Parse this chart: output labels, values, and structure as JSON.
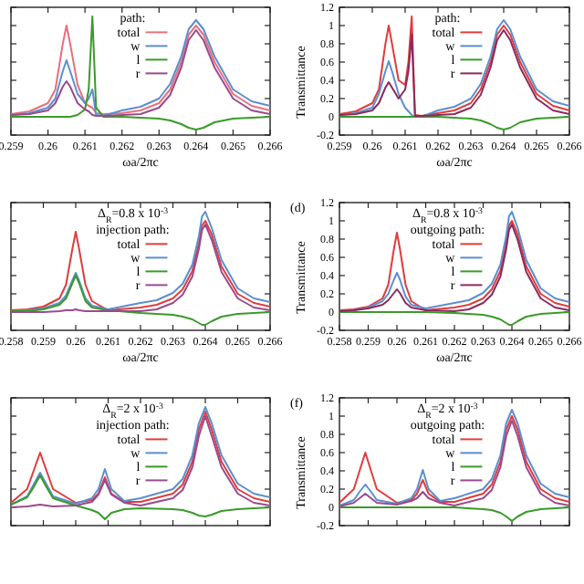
{
  "chart_data": [
    {
      "type": "line",
      "xlabel": "ωa/2πc",
      "legend_title": "path:",
      "legend": "top",
      "tick_labels": "x",
      "xlim": [
        0.259,
        0.266
      ],
      "ylim": [
        -0.2,
        1.2
      ],
      "xticks": [
        0.259,
        0.26,
        0.261,
        0.262,
        0.263,
        0.264,
        0.265,
        0.266
      ],
      "yticks": [
        -0.2,
        0,
        0.2,
        0.4,
        0.6,
        0.8,
        1,
        1.2
      ],
      "x": [
        0.259,
        0.2595,
        0.26,
        0.2602,
        0.2604,
        0.2605,
        0.2606,
        0.2608,
        0.261,
        0.2611,
        0.2612,
        0.2613,
        0.2615,
        0.262,
        0.2625,
        0.263,
        0.2633,
        0.2636,
        0.2638,
        0.264,
        0.2642,
        0.2645,
        0.265,
        0.2655,
        0.266
      ],
      "series": [
        {
          "name": "total",
          "color": "#e8707e",
          "values": [
            0.03,
            0.06,
            0.15,
            0.3,
            0.8,
            1.0,
            0.8,
            0.35,
            0.15,
            0.12,
            0.1,
            0.04,
            0.03,
            0.04,
            0.07,
            0.15,
            0.3,
            0.6,
            0.9,
            1.0,
            0.9,
            0.6,
            0.25,
            0.12,
            0.07
          ]
        },
        {
          "name": "w",
          "color": "#5a8fd0",
          "values": [
            0.02,
            0.04,
            0.1,
            0.2,
            0.5,
            0.62,
            0.5,
            0.25,
            0.15,
            0.2,
            0.3,
            0.02,
            0.01,
            0.07,
            0.11,
            0.2,
            0.36,
            0.66,
            0.96,
            1.06,
            0.96,
            0.66,
            0.3,
            0.17,
            0.12
          ]
        },
        {
          "name": "l",
          "color": "#3a9a2a",
          "values": [
            0,
            0,
            0,
            0,
            0,
            0,
            0,
            0.02,
            0.08,
            0.3,
            1.1,
            0.1,
            0,
            0,
            -0.01,
            -0.02,
            -0.04,
            -0.08,
            -0.12,
            -0.14,
            -0.12,
            -0.06,
            -0.02,
            -0.01,
            0
          ]
        },
        {
          "name": "r",
          "color": "#9a4a8e",
          "values": [
            0.02,
            0.03,
            0.07,
            0.15,
            0.33,
            0.39,
            0.33,
            0.15,
            0.08,
            0.06,
            0.02,
            0.01,
            0.01,
            0.02,
            0.03,
            0.1,
            0.24,
            0.54,
            0.84,
            0.95,
            0.84,
            0.54,
            0.2,
            0.07,
            0.03
          ]
        }
      ]
    },
    {
      "type": "line",
      "xlabel": "ωa/2πc",
      "ylabel": "Transmittance",
      "legend_title": "path:",
      "legend": "top",
      "xlim": [
        0.259,
        0.266
      ],
      "ylim": [
        -0.2,
        1.2
      ],
      "xticks": [
        0.259,
        0.26,
        0.261,
        0.262,
        0.263,
        0.264,
        0.265,
        0.266
      ],
      "yticks": [
        -0.2,
        0,
        0.2,
        0.4,
        0.6,
        0.8,
        1,
        1.2
      ],
      "x": [
        0.259,
        0.2595,
        0.26,
        0.2602,
        0.2604,
        0.2605,
        0.2606,
        0.2608,
        0.261,
        0.2611,
        0.2612,
        0.2613,
        0.2615,
        0.262,
        0.2625,
        0.263,
        0.2633,
        0.2636,
        0.2638,
        0.264,
        0.2642,
        0.2645,
        0.265,
        0.2655,
        0.266
      ],
      "series": [
        {
          "name": "total",
          "color": "#e03c3c",
          "values": [
            0.03,
            0.06,
            0.15,
            0.3,
            0.8,
            1.0,
            0.8,
            0.4,
            0.35,
            0.6,
            1.1,
            0.02,
            0.01,
            0.04,
            0.07,
            0.15,
            0.3,
            0.6,
            0.9,
            1.0,
            0.9,
            0.6,
            0.25,
            0.12,
            0.07
          ]
        },
        {
          "name": "w",
          "color": "#5a8fd0",
          "values": [
            0.02,
            0.04,
            0.1,
            0.25,
            0.5,
            0.61,
            0.5,
            0.25,
            0.1,
            0.06,
            0.02,
            0,
            0,
            0.07,
            0.11,
            0.2,
            0.36,
            0.66,
            0.96,
            1.06,
            0.96,
            0.66,
            0.3,
            0.17,
            0.12
          ]
        },
        {
          "name": "l",
          "color": "#3a9a2a",
          "values": [
            0,
            0,
            0,
            0,
            0,
            0,
            0,
            0,
            0,
            0,
            0,
            0,
            0,
            0,
            -0.01,
            -0.02,
            -0.04,
            -0.08,
            -0.12,
            -0.14,
            -0.12,
            -0.06,
            -0.02,
            -0.01,
            0
          ]
        },
        {
          "name": "r",
          "color": "#8a2a5e",
          "values": [
            0.02,
            0.03,
            0.07,
            0.15,
            0.32,
            0.38,
            0.32,
            0.2,
            0.3,
            0.5,
            0.9,
            0.01,
            0.01,
            0.02,
            0.03,
            0.1,
            0.24,
            0.54,
            0.84,
            0.95,
            0.84,
            0.54,
            0.2,
            0.07,
            0.03
          ]
        }
      ]
    },
    {
      "type": "line",
      "xlabel": "ωa/2πc",
      "legend_title": "injection path:",
      "annotations": [
        "Δ$_{R}$=0.8 x 10$^{-3}$"
      ],
      "legend": "top",
      "tick_labels": "x",
      "xlim": [
        0.258,
        0.266
      ],
      "ylim": [
        -0.2,
        1.2
      ],
      "xticks": [
        0.258,
        0.259,
        0.26,
        0.261,
        0.262,
        0.263,
        0.264,
        0.265,
        0.266
      ],
      "yticks": [
        -0.2,
        0,
        0.2,
        0.4,
        0.6,
        0.8,
        1,
        1.2
      ],
      "x": [
        0.258,
        0.2585,
        0.259,
        0.2595,
        0.2597,
        0.2599,
        0.26,
        0.2601,
        0.2603,
        0.2605,
        0.261,
        0.262,
        0.2625,
        0.263,
        0.2633,
        0.2636,
        0.2638,
        0.2639,
        0.264,
        0.2642,
        0.2645,
        0.265,
        0.2655,
        0.266
      ],
      "series": [
        {
          "name": "total",
          "color": "#e03c3c",
          "values": [
            0.02,
            0.03,
            0.06,
            0.15,
            0.3,
            0.7,
            0.88,
            0.7,
            0.3,
            0.12,
            0.02,
            0.05,
            0.08,
            0.15,
            0.25,
            0.45,
            0.75,
            0.95,
            1.0,
            0.85,
            0.5,
            0.2,
            0.1,
            0.06
          ]
        },
        {
          "name": "w",
          "color": "#5a8fd0",
          "values": [
            0.01,
            0.02,
            0.04,
            0.1,
            0.18,
            0.35,
            0.43,
            0.35,
            0.15,
            0.07,
            0.03,
            0.1,
            0.13,
            0.21,
            0.31,
            0.52,
            0.83,
            1.05,
            1.1,
            0.92,
            0.57,
            0.26,
            0.15,
            0.11
          ]
        },
        {
          "name": "l",
          "color": "#3a9a2a",
          "values": [
            0.01,
            0.01,
            0.03,
            0.08,
            0.15,
            0.32,
            0.4,
            0.32,
            0.12,
            0.05,
            0.02,
            -0.01,
            -0.02,
            -0.03,
            -0.05,
            -0.08,
            -0.12,
            -0.14,
            -0.14,
            -0.1,
            -0.05,
            -0.02,
            -0.01,
            0
          ]
        },
        {
          "name": "r",
          "color": "#9a4a8e",
          "values": [
            0,
            0,
            0,
            0.01,
            0.02,
            0.02,
            0.03,
            0.02,
            0.01,
            0.01,
            0.01,
            0.01,
            0.03,
            0.1,
            0.19,
            0.39,
            0.69,
            0.9,
            0.96,
            0.79,
            0.44,
            0.15,
            0.05,
            0.02
          ]
        }
      ]
    },
    {
      "type": "line",
      "title": "(d)",
      "xlabel": "ωa/2πc",
      "ylabel": "Transmittance",
      "legend_title": "outgoing path:",
      "annotations": [
        "Δ$_{R}$=0.8 x 10$^{-3}$"
      ],
      "legend": "top",
      "xlim": [
        0.258,
        0.266
      ],
      "ylim": [
        -0.2,
        1.2
      ],
      "xticks": [
        0.258,
        0.259,
        0.26,
        0.261,
        0.262,
        0.263,
        0.264,
        0.265,
        0.266
      ],
      "yticks": [
        -0.2,
        0,
        0.2,
        0.4,
        0.6,
        0.8,
        1,
        1.2
      ],
      "x": [
        0.258,
        0.2585,
        0.259,
        0.2595,
        0.2597,
        0.2599,
        0.26,
        0.2601,
        0.2603,
        0.2605,
        0.261,
        0.262,
        0.2625,
        0.263,
        0.2633,
        0.2636,
        0.2638,
        0.2639,
        0.264,
        0.2642,
        0.2645,
        0.265,
        0.2655,
        0.266
      ],
      "series": [
        {
          "name": "total",
          "color": "#e03c3c",
          "values": [
            0.02,
            0.03,
            0.06,
            0.15,
            0.3,
            0.7,
            0.87,
            0.7,
            0.3,
            0.12,
            0.02,
            0.05,
            0.08,
            0.15,
            0.25,
            0.45,
            0.75,
            0.95,
            1.0,
            0.85,
            0.5,
            0.2,
            0.1,
            0.06
          ]
        },
        {
          "name": "w",
          "color": "#5a8fd0",
          "values": [
            0.01,
            0.02,
            0.05,
            0.12,
            0.2,
            0.36,
            0.43,
            0.36,
            0.17,
            0.08,
            0.04,
            0.1,
            0.13,
            0.21,
            0.31,
            0.52,
            0.83,
            1.05,
            1.1,
            0.92,
            0.57,
            0.26,
            0.15,
            0.11
          ]
        },
        {
          "name": "l",
          "color": "#3a9a2a",
          "values": [
            0,
            0,
            0,
            0,
            0,
            0,
            0,
            0,
            0,
            0,
            0,
            -0.01,
            -0.02,
            -0.03,
            -0.05,
            -0.08,
            -0.12,
            -0.14,
            -0.14,
            -0.1,
            -0.05,
            -0.02,
            -0.01,
            0
          ]
        },
        {
          "name": "r",
          "color": "#8a2a5e",
          "values": [
            0.01,
            0.02,
            0.04,
            0.08,
            0.13,
            0.21,
            0.25,
            0.21,
            0.1,
            0.05,
            0.02,
            0.01,
            0.03,
            0.1,
            0.19,
            0.39,
            0.69,
            0.9,
            0.96,
            0.79,
            0.44,
            0.15,
            0.05,
            0.02
          ]
        }
      ]
    },
    {
      "type": "line",
      "legend_title": "injection path:",
      "annotations": [
        "Δ$_{R}$=2 x 10$^{-3}$"
      ],
      "legend": "top",
      "tick_labels": false,
      "xlim": [
        0.258,
        0.266
      ],
      "ylim": [
        -0.2,
        1.2
      ],
      "xticks": [
        0.258,
        0.259,
        0.26,
        0.261,
        0.262,
        0.263,
        0.264,
        0.265,
        0.266
      ],
      "yticks": [
        -0.2,
        0,
        0.2,
        0.4,
        0.6,
        0.8,
        1,
        1.2
      ],
      "x": [
        0.258,
        0.2585,
        0.2587,
        0.2589,
        0.2591,
        0.2593,
        0.26,
        0.2605,
        0.2607,
        0.2609,
        0.2611,
        0.2615,
        0.262,
        0.263,
        0.2633,
        0.2636,
        0.2638,
        0.264,
        0.2642,
        0.2645,
        0.265,
        0.2655,
        0.266
      ],
      "series": [
        {
          "name": "total",
          "color": "#e03c3c",
          "values": [
            0.05,
            0.2,
            0.4,
            0.6,
            0.4,
            0.2,
            0.05,
            0.08,
            0.15,
            0.33,
            0.15,
            0.06,
            0.06,
            0.15,
            0.25,
            0.5,
            0.85,
            1.05,
            0.85,
            0.5,
            0.2,
            0.1,
            0.06
          ]
        },
        {
          "name": "w",
          "color": "#5a8fd0",
          "values": [
            0.03,
            0.12,
            0.25,
            0.38,
            0.25,
            0.12,
            0.04,
            0.1,
            0.2,
            0.42,
            0.2,
            0.07,
            0.1,
            0.2,
            0.31,
            0.57,
            0.92,
            1.1,
            0.92,
            0.57,
            0.26,
            0.15,
            0.11
          ]
        },
        {
          "name": "l",
          "color": "#3a9a2a",
          "values": [
            0.03,
            0.11,
            0.22,
            0.35,
            0.22,
            0.1,
            0.02,
            -0.03,
            -0.06,
            -0.13,
            -0.06,
            -0.02,
            -0.01,
            -0.02,
            -0.03,
            -0.06,
            -0.09,
            -0.1,
            -0.08,
            -0.04,
            -0.02,
            -0.01,
            0
          ]
        },
        {
          "name": "r",
          "color": "#9a4a8e",
          "values": [
            0,
            0.01,
            0.02,
            0.03,
            0.02,
            0.01,
            0.02,
            0.06,
            0.14,
            0.3,
            0.14,
            0.05,
            0.02,
            0.1,
            0.19,
            0.44,
            0.78,
            1.0,
            0.78,
            0.44,
            0.15,
            0.05,
            0.02
          ]
        }
      ]
    },
    {
      "type": "line",
      "title": "(f)",
      "ylabel": "Transmittance",
      "legend_title": "outgoing path:",
      "annotations": [
        "Δ$_{R}$=2 x 10$^{-3}$"
      ],
      "legend": "top",
      "tick_labels": "y",
      "xlim": [
        0.258,
        0.266
      ],
      "ylim": [
        -0.2,
        1.2
      ],
      "xticks": [
        0.258,
        0.259,
        0.26,
        0.261,
        0.262,
        0.263,
        0.264,
        0.265,
        0.266
      ],
      "yticks": [
        -0.2,
        0,
        0.2,
        0.4,
        0.6,
        0.8,
        1,
        1.2
      ],
      "x": [
        0.258,
        0.2585,
        0.2587,
        0.2589,
        0.2591,
        0.2593,
        0.26,
        0.2605,
        0.2607,
        0.2609,
        0.2611,
        0.2615,
        0.262,
        0.263,
        0.2633,
        0.2636,
        0.2638,
        0.264,
        0.2642,
        0.2645,
        0.265,
        0.2655,
        0.266
      ],
      "series": [
        {
          "name": "total",
          "color": "#e03c3c",
          "values": [
            0.05,
            0.2,
            0.4,
            0.6,
            0.4,
            0.2,
            0.05,
            0.08,
            0.15,
            0.3,
            0.15,
            0.06,
            0.06,
            0.15,
            0.25,
            0.5,
            0.85,
            1.0,
            0.85,
            0.5,
            0.2,
            0.1,
            0.06
          ]
        },
        {
          "name": "w",
          "color": "#5a8fd0",
          "values": [
            0.02,
            0.08,
            0.17,
            0.25,
            0.17,
            0.08,
            0.04,
            0.1,
            0.2,
            0.41,
            0.2,
            0.07,
            0.1,
            0.2,
            0.31,
            0.57,
            0.92,
            1.07,
            0.92,
            0.57,
            0.26,
            0.15,
            0.11
          ]
        },
        {
          "name": "l",
          "color": "#3a9a2a",
          "values": [
            0,
            0,
            0,
            0,
            0,
            0,
            0,
            0,
            0,
            0,
            0,
            0,
            0,
            -0.02,
            -0.03,
            -0.06,
            -0.1,
            -0.15,
            -0.1,
            -0.05,
            -0.02,
            -0.01,
            0
          ]
        },
        {
          "name": "r",
          "color": "#9a4a8e",
          "values": [
            0.01,
            0.05,
            0.1,
            0.15,
            0.1,
            0.05,
            0.03,
            0.07,
            0.1,
            0.17,
            0.1,
            0.05,
            0.02,
            0.1,
            0.19,
            0.44,
            0.78,
            0.95,
            0.78,
            0.44,
            0.15,
            0.05,
            0.02
          ]
        }
      ]
    }
  ]
}
